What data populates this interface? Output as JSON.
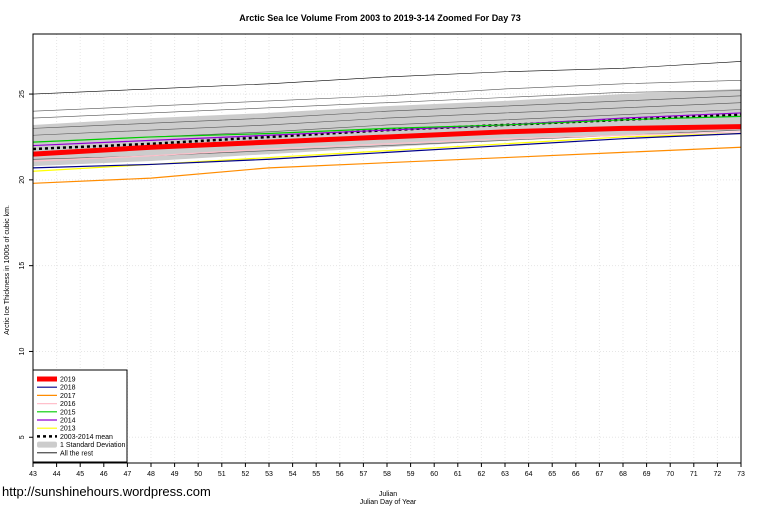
{
  "chart_data": {
    "type": "line",
    "title": "Arctic Sea Ice Volume From 2003 to 2019-3-14 Zoomed For Day 73",
    "xlabel": "Julian",
    "xlabel2": "Julian Day of Year",
    "ylabel": "Arctic Ice Thickness in 1000s of cubic km.",
    "xlim": [
      43,
      73
    ],
    "ylim": [
      3.5,
      28.5
    ],
    "x_ticks": [
      43,
      44,
      45,
      46,
      47,
      48,
      49,
      50,
      51,
      52,
      53,
      54,
      55,
      56,
      57,
      58,
      59,
      60,
      61,
      62,
      63,
      64,
      65,
      66,
      67,
      68,
      69,
      70,
      71,
      72,
      73
    ],
    "y_ticks": [
      5,
      10,
      15,
      20,
      25
    ],
    "grid": true,
    "legend_position": "bottom-left",
    "x": [
      43,
      48,
      53,
      58,
      63,
      68,
      73
    ],
    "std_band": {
      "name": "1 Standard Deviation",
      "color": "#cccccc",
      "upper": [
        23.2,
        23.6,
        23.9,
        24.3,
        24.6,
        25.0,
        25.3
      ],
      "lower": [
        20.8,
        21.1,
        21.5,
        21.9,
        22.3,
        22.6,
        22.9
      ]
    },
    "series": [
      {
        "name": "2019",
        "color": "#ff0000",
        "width": 5,
        "values": [
          21.5,
          21.9,
          22.2,
          22.5,
          22.8,
          23.0,
          23.1
        ]
      },
      {
        "name": "2018",
        "color": "#00008b",
        "width": 1.2,
        "values": [
          20.7,
          20.9,
          21.2,
          21.6,
          22.0,
          22.4,
          22.7
        ]
      },
      {
        "name": "2017",
        "color": "#ff8c00",
        "width": 1.2,
        "values": [
          19.8,
          20.1,
          20.7,
          21.0,
          21.3,
          21.6,
          21.9
        ]
      },
      {
        "name": "2016",
        "color": "#ffc0cb",
        "width": 1.2,
        "values": [
          21.1,
          21.4,
          21.8,
          22.1,
          22.4,
          22.6,
          22.8
        ]
      },
      {
        "name": "2015",
        "color": "#00cc00",
        "width": 1.2,
        "values": [
          22.2,
          22.5,
          22.7,
          23.0,
          23.2,
          23.5,
          23.7
        ]
      },
      {
        "name": "2014",
        "color": "#9400d3",
        "width": 1.2,
        "values": [
          22.0,
          22.3,
          22.6,
          22.9,
          23.2,
          23.6,
          23.9
        ]
      },
      {
        "name": "2013",
        "color": "#ffff00",
        "width": 1.2,
        "values": [
          20.5,
          20.9,
          21.3,
          21.7,
          22.1,
          22.5,
          22.7
        ]
      },
      {
        "name": "2003-2014 mean",
        "color": "#000000",
        "width": 2.5,
        "dash": "3,3",
        "values": [
          21.8,
          22.1,
          22.5,
          22.9,
          23.2,
          23.5,
          23.8
        ]
      },
      {
        "name": "All the rest",
        "color": "#000000",
        "width": 0.6,
        "values": [
          25.0,
          25.3,
          25.6,
          26.0,
          26.3,
          26.5,
          26.9
        ]
      }
    ],
    "other_lines": [
      [
        24.0,
        24.3,
        24.6,
        24.9,
        25.3,
        25.6,
        25.8
      ],
      [
        23.6,
        23.9,
        24.2,
        24.5,
        24.8,
        25.1,
        25.2
      ],
      [
        23.0,
        23.3,
        23.6,
        24.0,
        24.3,
        24.6,
        24.9
      ],
      [
        22.6,
        22.9,
        23.2,
        23.6,
        23.9,
        24.2,
        24.5
      ],
      [
        22.2,
        22.5,
        22.8,
        23.2,
        23.5,
        23.8,
        24.1
      ],
      [
        21.2,
        21.4,
        21.7,
        22.0,
        22.3,
        22.6,
        22.9
      ]
    ]
  },
  "watermark": "http://sunshinehours.wordpress.com"
}
